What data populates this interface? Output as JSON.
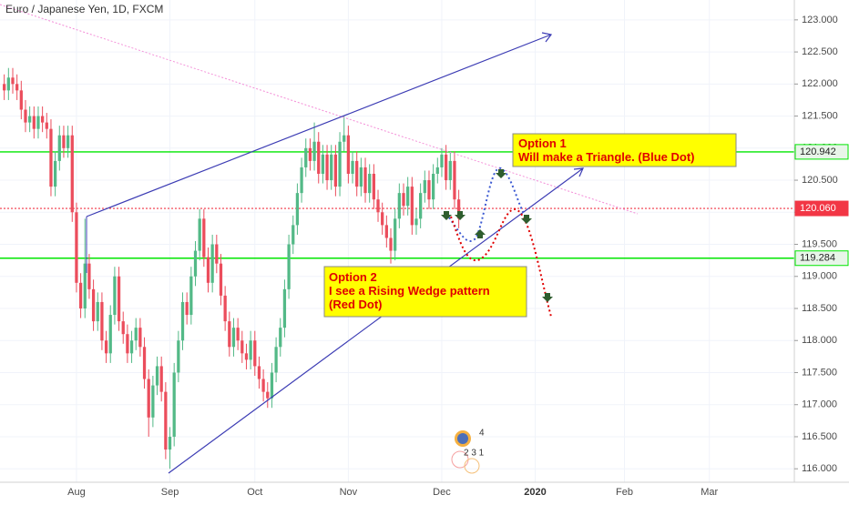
{
  "chart_data": {
    "type": "candlestick",
    "title": "Euro / Japanese Yen, 1D, FXCM",
    "x": [
      0,
      1,
      2,
      3,
      4,
      5,
      6,
      7,
      8,
      9,
      10,
      11,
      12,
      13,
      14,
      15,
      16,
      17,
      18,
      19,
      20,
      21,
      22,
      23,
      24,
      25,
      26,
      27,
      28,
      29,
      30,
      31,
      32,
      33,
      34,
      35,
      36,
      37,
      38,
      39,
      40,
      41,
      42,
      43,
      44,
      45,
      46,
      47,
      48,
      49,
      50,
      51,
      52,
      53,
      54,
      55,
      56,
      57,
      58,
      59,
      60,
      61,
      62,
      63,
      64,
      65,
      66,
      67,
      68,
      69,
      70,
      71,
      72,
      73,
      74,
      75,
      76,
      77,
      78,
      79,
      80,
      81,
      82,
      83,
      84,
      85,
      86,
      87,
      88,
      89,
      90,
      91,
      92,
      93,
      94,
      95,
      96,
      97,
      98,
      99,
      100,
      101,
      102,
      103,
      104,
      105,
      106,
      107
    ],
    "open": [
      122.0,
      121.9,
      122.1,
      122.0,
      121.9,
      121.6,
      121.4,
      121.5,
      121.3,
      121.5,
      121.4,
      121.3,
      120.4,
      120.8,
      121.2,
      121.0,
      121.2,
      120.0,
      118.9,
      118.5,
      119.2,
      118.8,
      118.3,
      118.6,
      118.0,
      117.8,
      118.4,
      119.0,
      118.3,
      118.1,
      117.8,
      118.0,
      118.2,
      117.9,
      117.4,
      116.8,
      117.3,
      117.6,
      117.2,
      116.3,
      116.5,
      117.5,
      118.0,
      118.6,
      118.4,
      119.0,
      119.4,
      119.9,
      119.3,
      118.9,
      119.5,
      119.2,
      118.7,
      118.3,
      117.9,
      118.2,
      118.0,
      117.8,
      117.7,
      118.0,
      117.6,
      117.4,
      117.2,
      117.1,
      117.5,
      117.9,
      118.2,
      118.8,
      119.5,
      119.8,
      120.3,
      120.7,
      121.0,
      120.8,
      121.1,
      120.6,
      120.9,
      120.5,
      120.9,
      120.4,
      121.1,
      121.2,
      120.6,
      120.8,
      120.4,
      120.7,
      120.3,
      120.6,
      120.2,
      120.0,
      119.8,
      119.6,
      119.4,
      119.9,
      120.3,
      120.1,
      120.4,
      119.8,
      119.9,
      120.3,
      120.5,
      120.2,
      120.6,
      120.7,
      120.9,
      120.5,
      120.8,
      120.2
    ],
    "high": [
      122.15,
      122.25,
      122.25,
      122.15,
      122.05,
      121.75,
      121.65,
      121.65,
      121.65,
      121.65,
      121.55,
      121.45,
      120.95,
      121.35,
      121.35,
      121.35,
      121.35,
      120.15,
      119.05,
      119.9,
      119.35,
      118.95,
      118.75,
      118.75,
      118.15,
      118.55,
      119.15,
      119.15,
      118.45,
      118.25,
      118.15,
      118.35,
      118.35,
      118.05,
      117.55,
      117.45,
      117.75,
      117.75,
      117.35,
      116.65,
      117.65,
      118.15,
      118.75,
      118.75,
      119.15,
      119.55,
      120.05,
      120.05,
      119.45,
      119.65,
      119.65,
      119.35,
      118.85,
      118.45,
      118.35,
      118.35,
      118.15,
      117.95,
      118.15,
      118.15,
      117.75,
      117.55,
      117.35,
      117.65,
      118.05,
      118.35,
      118.95,
      119.65,
      119.95,
      120.45,
      120.85,
      121.15,
      121.15,
      121.4,
      121.25,
      121.05,
      121.05,
      121.05,
      121.05,
      121.25,
      121.5,
      121.35,
      120.95,
      120.95,
      120.85,
      120.85,
      120.75,
      120.75,
      120.35,
      120.15,
      119.95,
      119.75,
      120.05,
      120.45,
      120.45,
      120.55,
      120.55,
      120.05,
      120.45,
      120.65,
      120.65,
      120.75,
      120.85,
      121.0,
      121.05,
      120.95,
      120.95,
      120.35
    ],
    "low": [
      121.75,
      121.75,
      121.85,
      121.75,
      121.45,
      121.25,
      121.25,
      121.15,
      121.15,
      121.25,
      121.15,
      120.25,
      120.25,
      120.65,
      120.85,
      120.85,
      119.85,
      118.75,
      118.35,
      118.35,
      118.65,
      118.15,
      118.15,
      117.85,
      117.65,
      117.65,
      118.25,
      118.15,
      117.95,
      117.65,
      117.65,
      117.85,
      117.75,
      117.25,
      116.5,
      116.65,
      117.15,
      117.05,
      116.15,
      116.0,
      116.35,
      117.35,
      117.85,
      118.25,
      118.25,
      118.85,
      119.25,
      119.15,
      118.75,
      118.75,
      119.05,
      118.55,
      118.15,
      117.75,
      117.75,
      117.85,
      117.65,
      117.55,
      117.55,
      117.45,
      117.25,
      117.05,
      116.95,
      116.95,
      117.35,
      117.75,
      118.05,
      118.65,
      119.35,
      119.65,
      120.15,
      120.55,
      120.65,
      120.65,
      120.45,
      120.45,
      120.35,
      120.35,
      120.25,
      120.25,
      120.95,
      120.45,
      120.45,
      120.25,
      120.25,
      120.15,
      120.15,
      120.05,
      119.85,
      119.65,
      119.45,
      119.2,
      119.25,
      119.75,
      119.95,
      119.95,
      119.65,
      119.65,
      119.75,
      120.15,
      120.05,
      120.05,
      120.45,
      120.55,
      120.35,
      120.35,
      120.05,
      119.75
    ],
    "close": [
      121.9,
      122.1,
      122.0,
      121.9,
      121.6,
      121.4,
      121.5,
      121.3,
      121.5,
      121.4,
      121.3,
      120.4,
      120.8,
      121.2,
      121.0,
      121.2,
      120.0,
      118.9,
      118.5,
      119.2,
      118.8,
      118.3,
      118.6,
      118.0,
      117.8,
      118.4,
      119.0,
      118.3,
      118.1,
      117.8,
      118.0,
      118.2,
      117.9,
      117.4,
      116.8,
      117.3,
      117.6,
      117.2,
      116.3,
      116.5,
      117.5,
      118.0,
      118.6,
      118.4,
      119.0,
      119.4,
      119.9,
      119.3,
      118.9,
      119.5,
      119.2,
      118.7,
      118.3,
      117.9,
      118.2,
      118.0,
      117.8,
      117.7,
      118.0,
      117.6,
      117.4,
      117.2,
      117.1,
      117.5,
      117.9,
      118.2,
      118.8,
      119.5,
      119.8,
      120.3,
      120.7,
      121.0,
      120.8,
      121.1,
      120.6,
      120.9,
      120.5,
      120.9,
      120.4,
      121.1,
      121.2,
      120.6,
      120.8,
      120.4,
      120.7,
      120.3,
      120.6,
      120.2,
      120.0,
      119.8,
      119.6,
      119.4,
      119.9,
      120.3,
      120.1,
      120.4,
      119.8,
      119.9,
      120.3,
      120.5,
      120.2,
      120.6,
      120.7,
      120.9,
      120.5,
      120.8,
      120.2,
      119.9
    ],
    "up_color": "#53b987",
    "down_color": "#eb4d5c",
    "xlim": [
      -1,
      186
    ],
    "xticks": [
      {
        "value": 17,
        "label": "Aug"
      },
      {
        "value": 39,
        "label": "Sep"
      },
      {
        "value": 59,
        "label": "Oct"
      },
      {
        "value": 81,
        "label": "Nov"
      },
      {
        "value": 103,
        "label": "Dec"
      },
      {
        "value": 125,
        "label": "2020"
      },
      {
        "value": 146,
        "label": "Feb"
      },
      {
        "value": 166,
        "label": "Mar"
      }
    ],
    "ylim": [
      115.79,
      123.31
    ],
    "yticks": [
      {
        "value": 116,
        "label": "116.000"
      },
      {
        "value": 116.5,
        "label": "116.500"
      },
      {
        "value": 117,
        "label": "117.000"
      },
      {
        "value": 117.5,
        "label": "117.500"
      },
      {
        "value": 118,
        "label": "118.000"
      },
      {
        "value": 118.5,
        "label": "118.500"
      },
      {
        "value": 119,
        "label": "119.000"
      },
      {
        "value": 119.5,
        "label": "119.500"
      },
      {
        "value": 120,
        "label": "120.000"
      },
      {
        "value": 120.5,
        "label": "120.500"
      },
      {
        "value": 121,
        "label": "121.000"
      },
      {
        "value": 121.5,
        "label": "121.500"
      },
      {
        "value": 122,
        "label": "122.000"
      },
      {
        "value": 122.5,
        "label": "122.500"
      },
      {
        "value": 123,
        "label": "123.000"
      }
    ],
    "levels": [
      {
        "value": 120.942,
        "color": "#00e600",
        "style": "solid"
      },
      {
        "value": 120.06,
        "label": "120.060",
        "color": "#f23645",
        "style": "dotted"
      },
      {
        "value": 119.284,
        "color": "#00e600",
        "style": "solid"
      }
    ],
    "annotations": [
      [
        "Option 1",
        "Will make a Triangle. (Blue Dot)"
      ],
      [
        "Option 2",
        "I see a Rising Wedge pattern",
        "(Red Dot)"
      ]
    ],
    "watermark": [
      "4",
      "2 3 1"
    ]
  }
}
